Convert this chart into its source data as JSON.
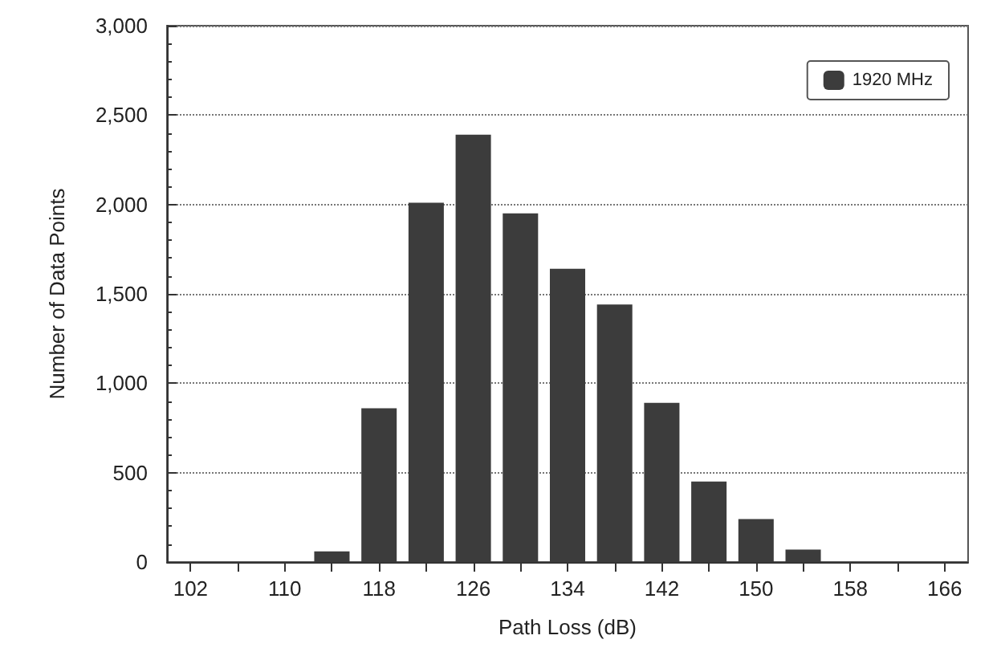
{
  "chart_data": {
    "type": "bar",
    "xlabel": "Path Loss (dB)",
    "ylabel": "Number of Data Points",
    "categories": [
      "102",
      null,
      "110",
      null,
      "118",
      null,
      "126",
      null,
      "134",
      null,
      "142",
      null,
      "150",
      null,
      "158",
      null,
      "166"
    ],
    "series": [
      {
        "name": "1920 MHz",
        "color": "#3c3c3c",
        "values": [
          null,
          null,
          null,
          60,
          860,
          2010,
          2390,
          1950,
          1640,
          1440,
          890,
          450,
          240,
          70,
          null,
          null,
          null
        ]
      }
    ],
    "ylim": [
      0,
      3000
    ],
    "yticks": [
      0,
      {
        "value": 500,
        "label": "500"
      },
      {
        "value": 1000,
        "label": "1,000"
      },
      {
        "value": 1500,
        "label": "1,500"
      },
      {
        "value": 2000,
        "label": "2,000"
      },
      {
        "value": 2500,
        "label": "2,500"
      },
      {
        "value": 3000,
        "label": "3,000"
      }
    ],
    "grid": "y",
    "legend": "top right"
  }
}
